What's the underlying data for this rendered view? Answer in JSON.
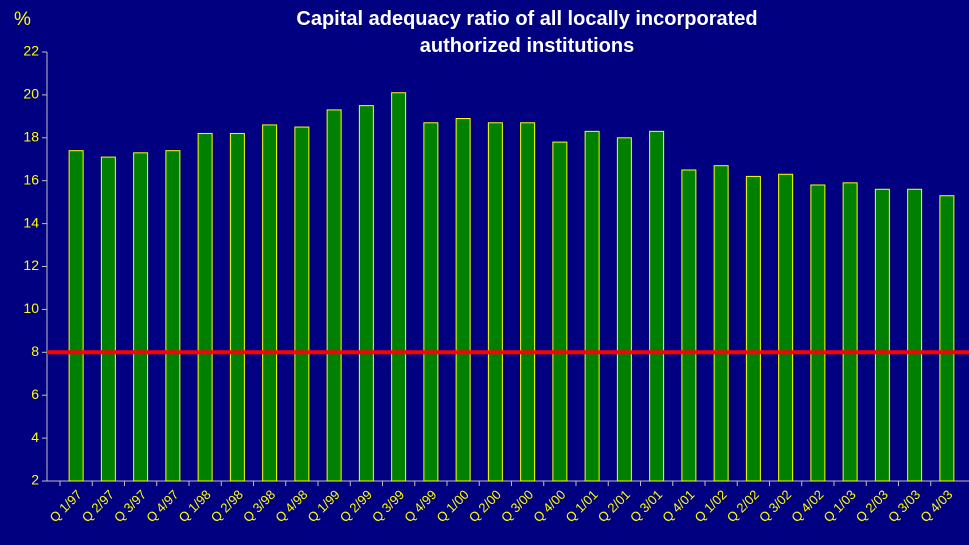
{
  "chart_data": {
    "type": "bar",
    "title": "Capital adequacy ratio of all locally incorporated authorized institutions",
    "y_label": "%",
    "categories": [
      "Q 1/97",
      "Q 2/97",
      "Q 3/97",
      "Q 4/97",
      "Q 1/98",
      "Q 2/98",
      "Q 3/98",
      "Q 4/98",
      "Q 1/99",
      "Q 2/99",
      "Q 3/99",
      "Q 4/99",
      "Q 1/00",
      "Q 2/00",
      "Q 3/00",
      "Q 4/00",
      "Q 1/01",
      "Q 2/01",
      "Q 3/01",
      "Q 4/01",
      "Q 1/02",
      "Q 2/02",
      "Q 3/02",
      "Q 4/02",
      "Q 1/03",
      "Q 2/03",
      "Q 3/03",
      "Q 4/03"
    ],
    "values": [
      17.4,
      17.1,
      17.3,
      17.4,
      18.2,
      18.2,
      18.6,
      18.5,
      19.3,
      19.5,
      20.1,
      18.7,
      18.9,
      18.7,
      18.7,
      17.8,
      18.3,
      18.0,
      18.3,
      16.5,
      16.7,
      16.2,
      16.3,
      15.8,
      15.9,
      15.6,
      15.6,
      15.3
    ],
    "color": "#008000",
    "edge_color": "#ffff00",
    "ylim": [
      2,
      22
    ],
    "yticks": [
      2,
      4,
      6,
      8,
      10,
      12,
      14,
      16,
      18,
      20,
      22
    ],
    "reference_line": {
      "value": 8,
      "color": "#ff0000"
    }
  }
}
